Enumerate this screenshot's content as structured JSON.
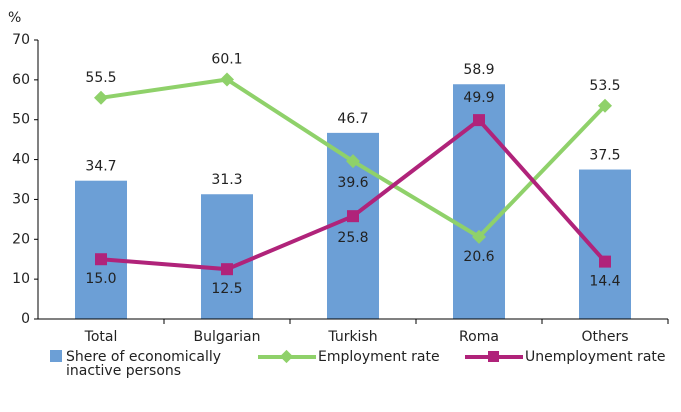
{
  "chart_data": {
    "type": "bar",
    "y_axis_label": "%",
    "categories": [
      "Total",
      "Bulgarian",
      "Turkish",
      "Roma",
      "Others"
    ],
    "ylim": [
      0,
      70
    ],
    "yticks": [
      0,
      10,
      20,
      30,
      40,
      50,
      60,
      70
    ],
    "series": [
      {
        "name": "Shere of economically inactive persons",
        "type": "bar",
        "color": "#6c9fd6",
        "values": [
          34.7,
          31.3,
          46.7,
          58.9,
          37.5
        ]
      },
      {
        "name": "Employment rate",
        "type": "line",
        "marker": "diamond",
        "color": "#8fd16a",
        "values": [
          55.5,
          60.1,
          39.6,
          20.6,
          53.5
        ]
      },
      {
        "name": "Unemployment rate",
        "type": "line",
        "marker": "square",
        "color": "#b0237a",
        "values": [
          15.0,
          12.5,
          25.8,
          49.9,
          14.4
        ],
        "value_labels": [
          "15.0",
          "12.5",
          "25.8",
          "49.9",
          "14.4"
        ]
      }
    ]
  }
}
